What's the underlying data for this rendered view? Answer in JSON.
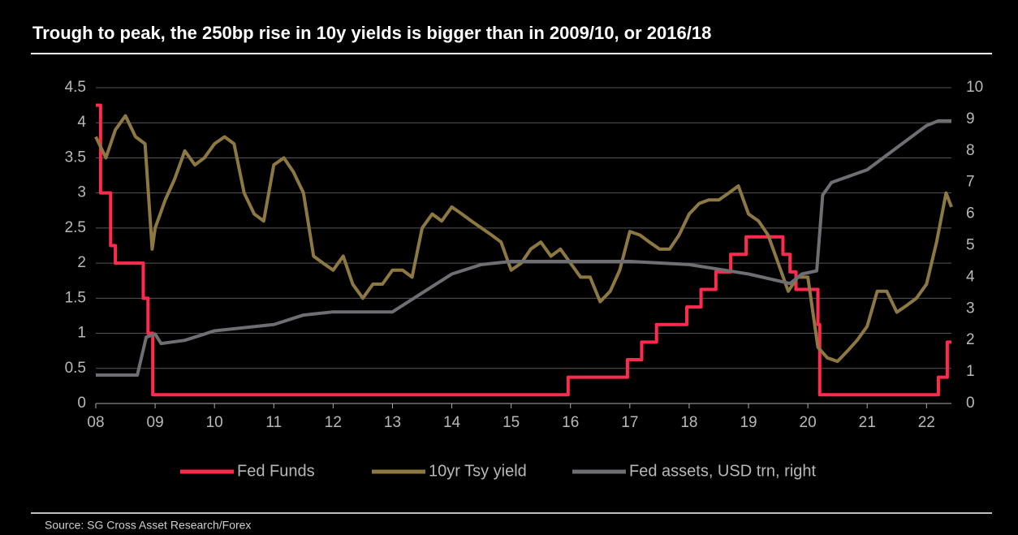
{
  "chart_data": {
    "type": "line",
    "title": "Trough to peak, the 250bp rise in 10y yields is bigger than in 2009/10, or 2016/18",
    "source": "Source: SG Cross Asset Research/Forex",
    "xlim": [
      8,
      22.42
    ],
    "xticks": [
      {
        "value": 8,
        "label": "08"
      },
      {
        "value": 9,
        "label": "09"
      },
      10,
      11,
      12,
      13,
      14,
      15,
      16,
      17,
      18,
      19,
      20,
      21,
      22
    ],
    "ylim": [
      0,
      4.5
    ],
    "yticks": [
      0,
      0.5,
      1,
      1.5,
      2,
      2.5,
      3,
      3.5,
      4,
      4.5
    ],
    "y2lim": [
      0,
      10
    ],
    "y2ticks": [
      0,
      1,
      2,
      3,
      4,
      5,
      6,
      7,
      8,
      9,
      10
    ],
    "grid": true,
    "legend": "bottom",
    "series": [
      {
        "name": "Fed Funds",
        "color": "#ff2a4d",
        "drawstyle": "steps-post",
        "x": [
          8,
          8.08,
          8.25,
          8.33,
          8.8,
          8.88,
          8.96,
          15.96,
          16.96,
          17.2,
          17.45,
          17.96,
          18.2,
          18.45,
          18.7,
          18.96,
          19.58,
          19.7,
          19.8,
          20.17,
          20.2,
          22.2,
          22.35,
          22.42
        ],
        "values": [
          4.25,
          3,
          2.25,
          2,
          1.5,
          1,
          0.125,
          0.375,
          0.625,
          0.875,
          1.125,
          1.375,
          1.625,
          1.875,
          2.125,
          2.375,
          2.125,
          1.875,
          1.625,
          1.125,
          0.125,
          0.375,
          0.875,
          0.875
        ]
      },
      {
        "name": "10yr Tsy yield",
        "color": "#8c7840",
        "x": [
          8,
          8.17,
          8.33,
          8.5,
          8.67,
          8.83,
          8.95,
          9,
          9.17,
          9.33,
          9.5,
          9.67,
          9.83,
          10,
          10.17,
          10.33,
          10.5,
          10.67,
          10.83,
          11,
          11.17,
          11.33,
          11.5,
          11.67,
          11.83,
          12,
          12.17,
          12.33,
          12.5,
          12.67,
          12.83,
          13,
          13.17,
          13.33,
          13.5,
          13.67,
          13.83,
          14,
          14.17,
          14.33,
          14.5,
          14.67,
          14.83,
          15,
          15.17,
          15.33,
          15.5,
          15.67,
          15.83,
          16,
          16.17,
          16.33,
          16.5,
          16.67,
          16.83,
          17,
          17.17,
          17.33,
          17.5,
          17.67,
          17.83,
          18,
          18.17,
          18.33,
          18.5,
          18.67,
          18.83,
          19,
          19.17,
          19.33,
          19.5,
          19.67,
          19.83,
          20,
          20.17,
          20.33,
          20.5,
          20.67,
          20.83,
          21,
          21.17,
          21.33,
          21.5,
          21.67,
          21.83,
          22,
          22.17,
          22.33,
          22.42
        ],
        "values": [
          3.8,
          3.5,
          3.9,
          4.1,
          3.8,
          3.7,
          2.2,
          2.5,
          2.9,
          3.2,
          3.6,
          3.4,
          3.5,
          3.7,
          3.8,
          3.7,
          3,
          2.7,
          2.6,
          3.4,
          3.5,
          3.3,
          3,
          2.1,
          2,
          1.9,
          2.1,
          1.7,
          1.5,
          1.7,
          1.7,
          1.9,
          1.9,
          1.8,
          2.5,
          2.7,
          2.6,
          2.8,
          2.7,
          2.6,
          2.5,
          2.4,
          2.3,
          1.9,
          2,
          2.2,
          2.3,
          2.1,
          2.2,
          2,
          1.8,
          1.8,
          1.45,
          1.6,
          1.9,
          2.45,
          2.4,
          2.3,
          2.2,
          2.2,
          2.4,
          2.7,
          2.85,
          2.9,
          2.9,
          3,
          3.1,
          2.7,
          2.6,
          2.4,
          2,
          1.6,
          1.8,
          1.8,
          0.8,
          0.65,
          0.6,
          0.75,
          0.9,
          1.1,
          1.6,
          1.6,
          1.3,
          1.4,
          1.5,
          1.7,
          2.3,
          3,
          2.8
        ]
      },
      {
        "name": "Fed assets, USD trn, right",
        "color": "#6e6e73",
        "axis": "y2",
        "x": [
          8,
          8.7,
          8.85,
          9,
          9.1,
          9.5,
          10,
          11,
          11.5,
          12,
          13,
          13.5,
          14,
          14.5,
          15,
          17,
          18,
          19,
          19.7,
          19.9,
          20.15,
          20.25,
          20.4,
          21,
          21.5,
          22,
          22.2,
          22.42
        ],
        "values": [
          0.9,
          0.9,
          2.1,
          2.2,
          1.9,
          2,
          2.3,
          2.5,
          2.8,
          2.9,
          2.9,
          3.5,
          4.1,
          4.4,
          4.5,
          4.5,
          4.4,
          4.1,
          3.8,
          4.1,
          4.2,
          6.6,
          7,
          7.4,
          8.1,
          8.8,
          8.95,
          8.95
        ]
      }
    ]
  }
}
